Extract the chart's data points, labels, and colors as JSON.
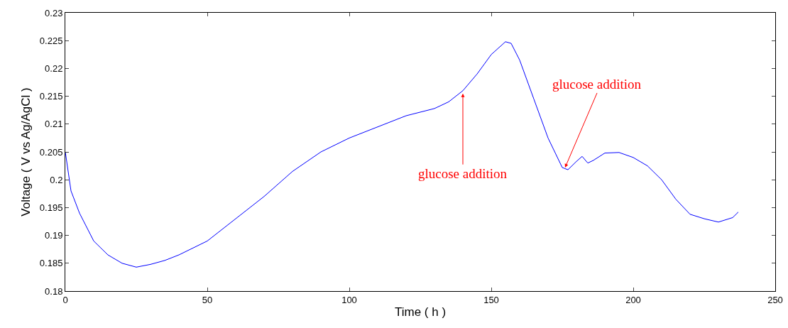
{
  "chart_data": {
    "type": "line",
    "xlabel": "Time ( h )",
    "ylabel": "Voltage ( V vs Ag/AgCl )",
    "x": [
      0,
      2,
      5,
      10,
      15,
      20,
      25,
      30,
      35,
      40,
      50,
      55,
      60,
      70,
      80,
      90,
      100,
      110,
      120,
      130,
      135,
      140,
      145,
      150,
      155,
      157,
      160,
      165,
      170,
      175,
      177,
      180,
      182,
      184,
      186,
      190,
      195,
      200,
      205,
      210,
      215,
      220,
      225,
      230,
      235,
      237
    ],
    "series": [
      {
        "color": "#0000ff",
        "values": [
          0.205,
          0.198,
          0.194,
          0.189,
          0.1865,
          0.185,
          0.1843,
          0.1848,
          0.1855,
          0.1865,
          0.189,
          0.191,
          0.193,
          0.197,
          0.2015,
          0.205,
          0.2075,
          0.2095,
          0.2115,
          0.2128,
          0.214,
          0.216,
          0.219,
          0.2225,
          0.2248,
          0.2245,
          0.2215,
          0.2145,
          0.2075,
          0.2022,
          0.2018,
          0.2033,
          0.2042,
          0.203,
          0.2035,
          0.2048,
          0.2049,
          0.204,
          0.2025,
          0.2,
          0.1965,
          0.1938,
          0.193,
          0.1924,
          0.1932,
          0.1942
        ]
      }
    ],
    "xlim": [
      0,
      250
    ],
    "xticks": [
      0,
      50,
      100,
      150,
      200,
      250
    ],
    "ylim": [
      0.18,
      0.23
    ],
    "yticks": [
      0.18,
      0.185,
      0.19,
      0.195,
      0.2,
      0.205,
      0.21,
      0.215,
      0.22,
      0.225,
      0.23
    ],
    "grid": false,
    "legend": false,
    "marker": "none",
    "line_style": "solid",
    "annotations": [
      {
        "text": "glucose addition",
        "x": 140,
        "y": 0.2155
      },
      {
        "text": "glucose addition",
        "x": 176,
        "y": 0.2022
      }
    ]
  }
}
